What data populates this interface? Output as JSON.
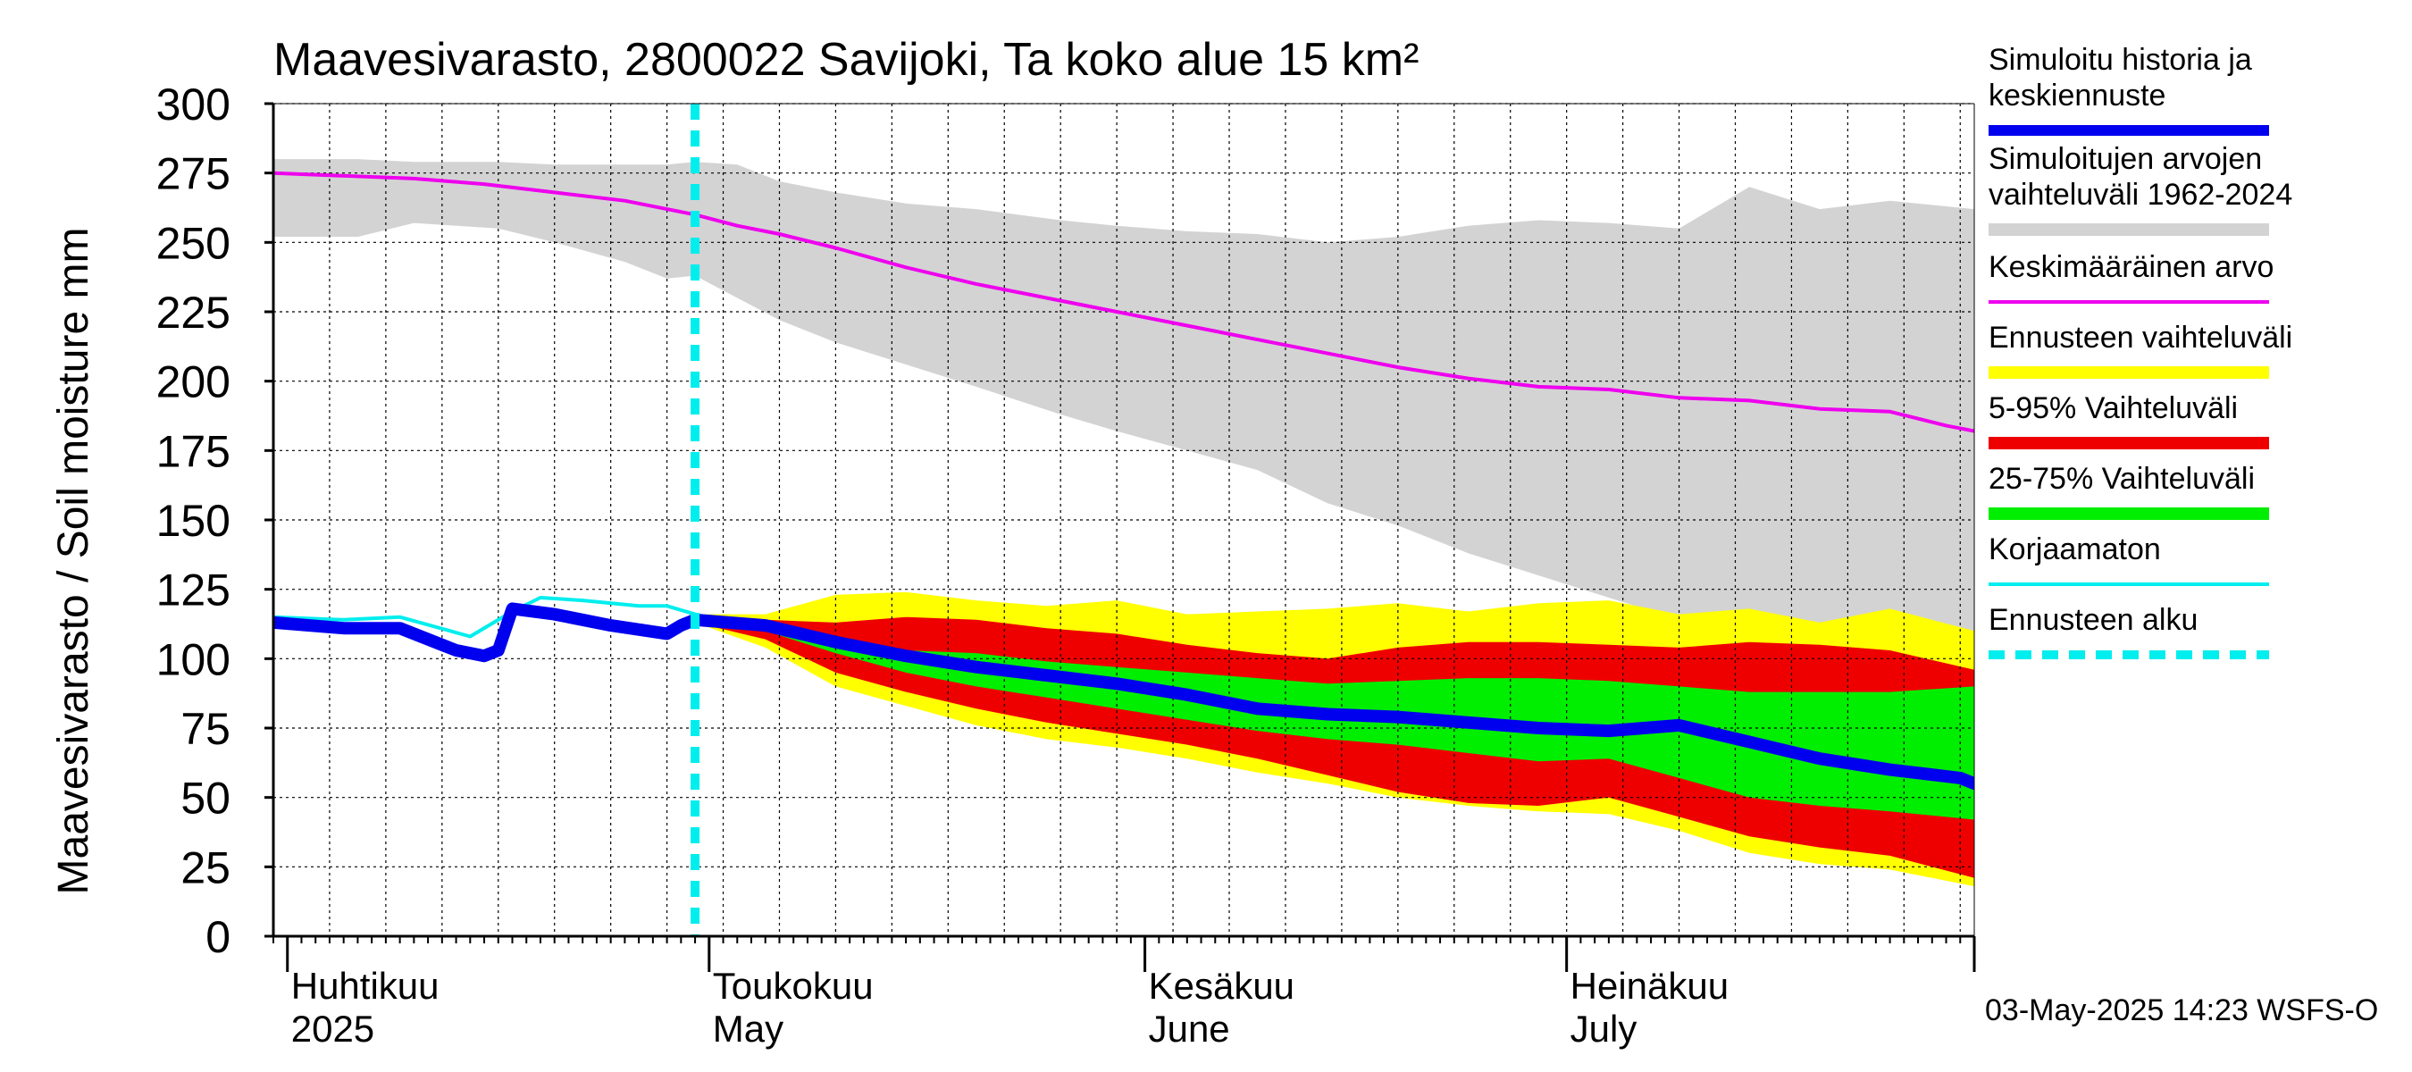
{
  "chart_data": {
    "type": "area",
    "title": "Maavesivarasto, 2800022 Savijoki, Ta koko alue 15 km²",
    "ylabel": "Maavesivarasto / Soil moisture   mm",
    "xlabel": "",
    "ylim": [
      0,
      300
    ],
    "yticks": [
      "300",
      "275",
      "250",
      "225",
      "200",
      "175",
      "150",
      "125",
      "100",
      "75",
      "50",
      "25",
      "0"
    ],
    "x_domain_days": [
      0,
      121
    ],
    "x_start_date": "2025-03-30",
    "grid": true,
    "month_labels": [
      {
        "fi": "Huhtikuu",
        "en": "2025",
        "day": 2
      },
      {
        "fi": "Toukokuu",
        "en": "May",
        "day": 32
      },
      {
        "fi": "Kesäkuu",
        "en": "June",
        "day": 63
      },
      {
        "fi": "Heinäkuu",
        "en": "July",
        "day": 93
      }
    ],
    "forecast_start_day": 30,
    "legend_position": "right",
    "legend": [
      {
        "label_lines": [
          "Simuloitu historia ja",
          "keskiennuste"
        ],
        "color": "#0000ee",
        "style": "thick"
      },
      {
        "label_lines": [
          "Simuloitujen arvojen",
          "vaihteluväli 1962-2024"
        ],
        "color": "#d3d3d3",
        "style": "band"
      },
      {
        "label_lines": [
          "Keskimääräinen arvo"
        ],
        "color": "#ee00ee",
        "style": "line"
      },
      {
        "label_lines": [
          "Ennusteen vaihteluväli"
        ],
        "color": "#ffff00",
        "style": "band"
      },
      {
        "label_lines": [
          "5-95% Vaihteluväli"
        ],
        "color": "#ee0000",
        "style": "band"
      },
      {
        "label_lines": [
          "25-75% Vaihteluväli"
        ],
        "color": "#00ee00",
        "style": "band"
      },
      {
        "label_lines": [
          "Korjaamaton"
        ],
        "color": "#00eeee",
        "style": "line"
      },
      {
        "label_lines": [
          "Ennusteen alku"
        ],
        "color": "#00eeee",
        "style": "dashed"
      }
    ],
    "series": [
      {
        "name": "Simuloitujen arvojen vaihteluväli 1962-2024",
        "type": "band",
        "color": "#d3d3d3",
        "x": [
          0,
          6,
          10,
          16,
          20,
          25,
          28,
          30,
          33,
          36,
          40,
          45,
          50,
          56,
          60,
          65,
          70,
          75,
          80,
          85,
          90,
          95,
          100,
          105,
          110,
          115,
          121
        ],
        "upper": [
          280,
          280,
          279,
          279,
          278,
          278,
          278,
          279,
          278,
          272,
          268,
          264,
          262,
          258,
          256,
          254,
          253,
          250,
          252,
          256,
          258,
          257,
          255,
          270,
          262,
          265,
          262
        ],
        "lower": [
          252,
          252,
          257,
          255,
          250,
          243,
          237,
          238,
          230,
          222,
          214,
          206,
          198,
          188,
          182,
          175,
          168,
          156,
          148,
          138,
          130,
          122,
          114,
          108,
          103,
          100,
          97
        ]
      },
      {
        "name": "Ennusteen vaihteluväli",
        "type": "band",
        "color": "#ffff00",
        "x": [
          30,
          35,
          40,
          45,
          50,
          55,
          60,
          65,
          70,
          75,
          80,
          85,
          90,
          95,
          100,
          105,
          110,
          115,
          121
        ],
        "upper": [
          116,
          116,
          123,
          124,
          121,
          119,
          121,
          116,
          117,
          118,
          120,
          117,
          120,
          121,
          116,
          118,
          113,
          118,
          110
        ],
        "lower": [
          113,
          104,
          90,
          83,
          76,
          71,
          68,
          64,
          59,
          55,
          50,
          47,
          45,
          44,
          38,
          30,
          26,
          24,
          18
        ]
      },
      {
        "name": "5-95% Vaihteluväli",
        "type": "band",
        "color": "#ee0000",
        "x": [
          30,
          35,
          40,
          45,
          50,
          55,
          60,
          65,
          70,
          75,
          80,
          85,
          90,
          95,
          100,
          105,
          110,
          115,
          121
        ],
        "upper": [
          115,
          114,
          113,
          115,
          114,
          111,
          109,
          105,
          102,
          100,
          104,
          106,
          106,
          105,
          104,
          106,
          105,
          103,
          96
        ],
        "lower": [
          113,
          107,
          95,
          88,
          82,
          77,
          73,
          69,
          64,
          58,
          52,
          48,
          47,
          50,
          43,
          36,
          32,
          29,
          21
        ]
      },
      {
        "name": "25-75% Vaihteluväli",
        "type": "band",
        "color": "#00ee00",
        "x": [
          30,
          35,
          40,
          45,
          50,
          55,
          60,
          65,
          70,
          75,
          80,
          85,
          90,
          95,
          100,
          105,
          110,
          115,
          121
        ],
        "upper": [
          114,
          111,
          106,
          103,
          102,
          99,
          97,
          95,
          93,
          91,
          92,
          93,
          93,
          92,
          90,
          88,
          88,
          88,
          90
        ],
        "lower": [
          114,
          110,
          102,
          95,
          90,
          86,
          82,
          78,
          74,
          71,
          69,
          66,
          63,
          64,
          57,
          50,
          47,
          45,
          42
        ]
      },
      {
        "name": "Keskimääräinen arvo",
        "type": "line",
        "color": "#ee00ee",
        "x": [
          0,
          5,
          10,
          15,
          20,
          25,
          28,
          30,
          33,
          36,
          40,
          45,
          50,
          55,
          60,
          65,
          70,
          75,
          80,
          85,
          90,
          95,
          100,
          105,
          110,
          115,
          119,
          121
        ],
        "y": [
          275,
          274,
          273,
          271,
          268,
          265,
          262,
          260,
          256,
          253,
          248,
          241,
          235,
          230,
          225,
          220,
          215,
          210,
          205,
          201,
          198,
          197,
          194,
          193,
          190,
          189,
          184,
          182
        ]
      },
      {
        "name": "Korjaamaton",
        "type": "line",
        "color": "#00eeee",
        "x": [
          0,
          5,
          9,
          14,
          17,
          19,
          22,
          26,
          28,
          30
        ],
        "y": [
          115,
          114,
          115,
          108,
          117,
          122,
          121,
          119,
          119,
          116
        ]
      },
      {
        "name": "Simuloitu historia ja keskiennuste",
        "type": "line",
        "color": "#0000ee",
        "x": [
          0,
          5,
          9,
          12,
          13,
          14,
          15,
          16,
          17,
          20,
          24,
          28,
          29,
          30,
          35,
          40,
          45,
          50,
          55,
          60,
          65,
          70,
          75,
          80,
          85,
          90,
          95,
          100,
          105,
          110,
          115,
          120,
          121
        ],
        "y": [
          113,
          111,
          111,
          105,
          103,
          102,
          101,
          103,
          118,
          116,
          112,
          109,
          112,
          114,
          112,
          106,
          101,
          97,
          94,
          91,
          87,
          82,
          80,
          79,
          77,
          75,
          74,
          76,
          70,
          64,
          60,
          57,
          55
        ]
      }
    ]
  },
  "timestamp": "03-May-2025 14:23 WSFS-O"
}
